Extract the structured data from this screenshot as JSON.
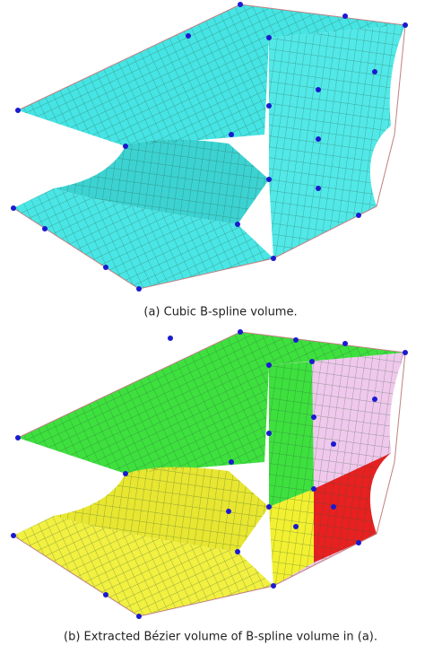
{
  "figures": [
    {
      "caption": "(a) Cubic B-spline volume."
    },
    {
      "caption": "(b) Extracted Bézier volume of B-spline volume in (a)."
    }
  ]
}
